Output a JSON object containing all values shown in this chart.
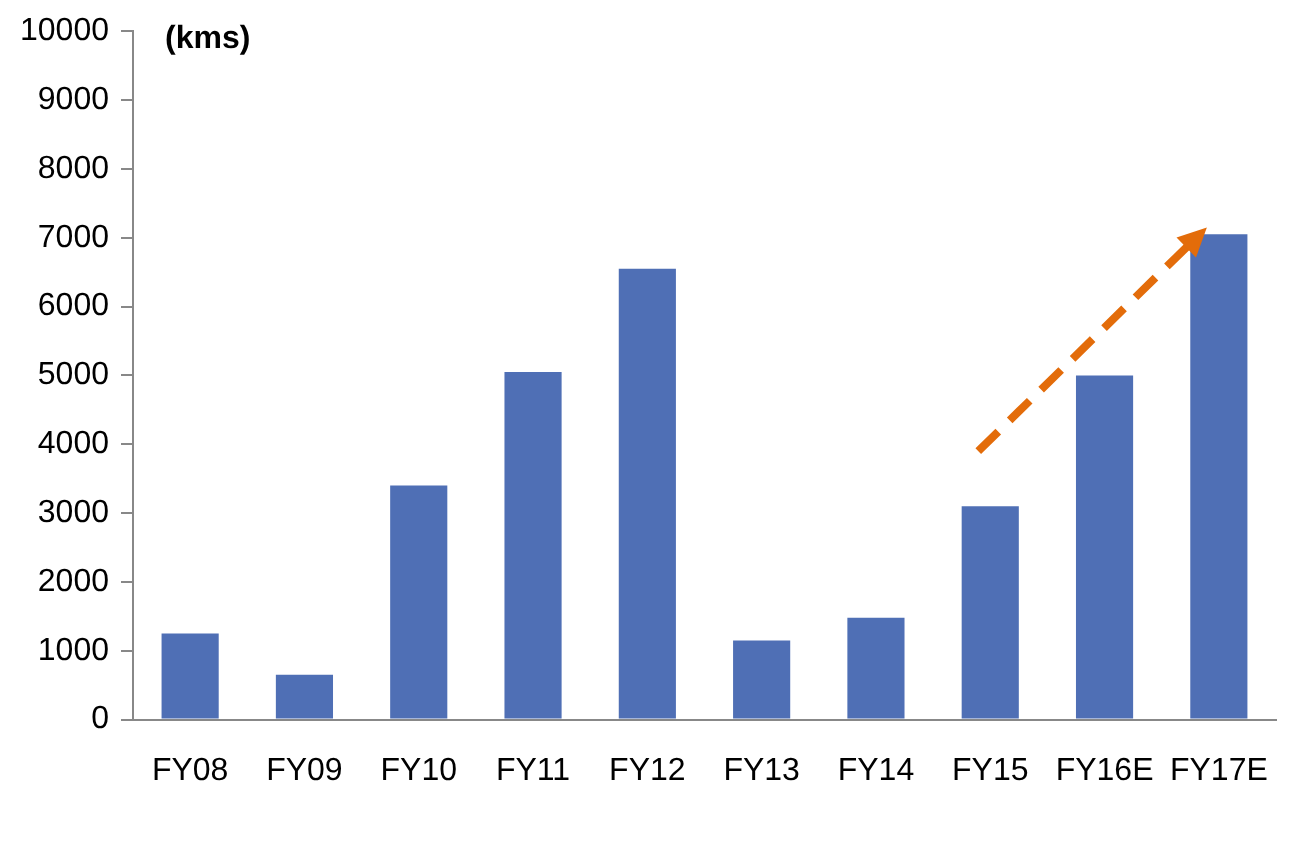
{
  "chart_data": {
    "type": "bar",
    "ylabel": "(kms)",
    "categories": [
      "FY08",
      "FY09",
      "FY10",
      "FY11",
      "FY12",
      "FY13",
      "FY14",
      "FY15",
      "FY16E",
      "FY17E"
    ],
    "values": [
      1250,
      650,
      3400,
      5050,
      6550,
      1150,
      1480,
      3100,
      5000,
      7050
    ],
    "color": "#4f6fb5",
    "ylim": [
      0,
      10000
    ],
    "yticks": [
      0,
      1000,
      2000,
      3000,
      4000,
      5000,
      6000,
      7000,
      8000,
      9000,
      10000
    ],
    "grid": false,
    "legend": false
  }
}
